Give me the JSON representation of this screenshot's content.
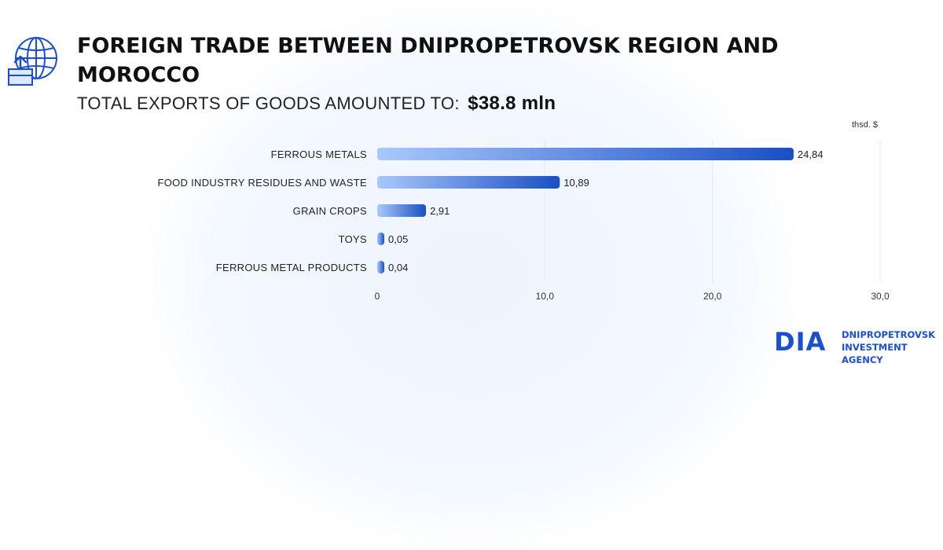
{
  "header": {
    "title": "FOREIGN TRADE BETWEEN DNIPROPETROVSK REGION AND MOROCCO",
    "subtitle_prefix": "TOTAL EXPORTS OF GOODS AMOUNTED TO:",
    "subtitle_amount": "$38.8 mln",
    "icon": "globe-export-icon"
  },
  "chart_data": {
    "type": "bar",
    "orientation": "horizontal",
    "unit_label": "thsd. $",
    "categories": [
      "FERROUS METALS",
      "FOOD INDUSTRY RESIDUES AND WASTE",
      "GRAIN CROPS",
      "TOYS",
      "FERROUS METAL PRODUCTS"
    ],
    "values": [
      24.84,
      10.89,
      2.91,
      0.05,
      0.04
    ],
    "value_labels": [
      "24,84",
      "10,89",
      "2,91",
      "0,05",
      "0,04"
    ],
    "xlim": [
      0,
      30
    ],
    "x_ticks": [
      0,
      10,
      20,
      30
    ],
    "x_tick_labels": [
      "0",
      "10,0",
      "20,0",
      "30,0"
    ],
    "grid": true,
    "bar_color_start": "#a9c8fb",
    "bar_color_end": "#1a4fc4"
  },
  "brand": {
    "logo_mark": "DIA",
    "line1": "DNIPROPETROVSK",
    "line2": "INVESTMENT AGENCY",
    "color": "#1b4fd1"
  }
}
